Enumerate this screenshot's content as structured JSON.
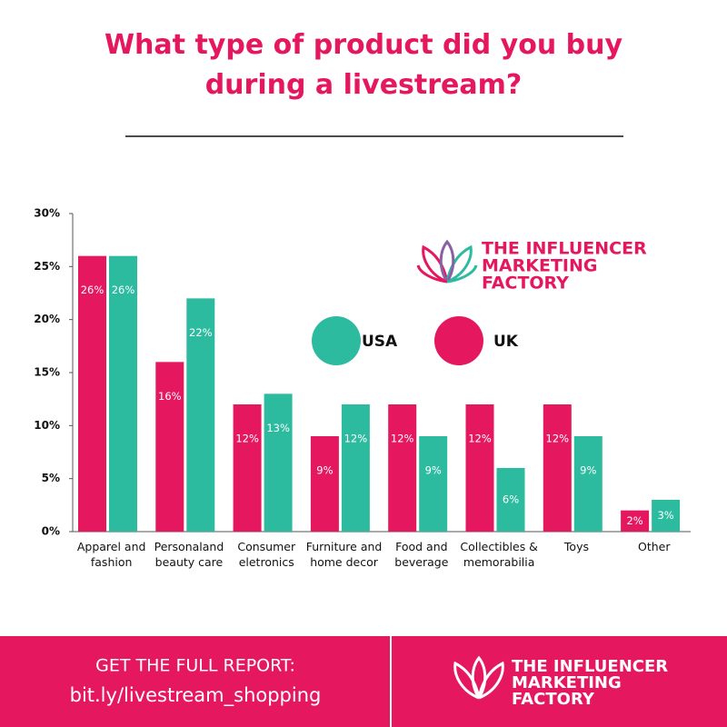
{
  "chart_data": {
    "type": "bar",
    "title": "What type of product did you buy during a livestream?",
    "categories": [
      "Apparel and fashion",
      "Personaland beauty care",
      "Consumer eletronics",
      "Furniture and home decor",
      "Food and beverage",
      "Collectibles & memorabilia",
      "Toys",
      "Other"
    ],
    "series": [
      {
        "name": "UK",
        "color": "#e5175f",
        "values": [
          26,
          16,
          12,
          9,
          12,
          12,
          12,
          2
        ],
        "value_labels": [
          "26%",
          "16%",
          "12%",
          "9%",
          "12%",
          "12%",
          "12%",
          "2%"
        ]
      },
      {
        "name": "USA",
        "color": "#2dbba0",
        "values": [
          26,
          22,
          13,
          12,
          9,
          6,
          9,
          3
        ],
        "value_labels": [
          "26%",
          "22%",
          "13%",
          "12%",
          "9%",
          "6%",
          "9%",
          "3%"
        ]
      }
    ],
    "ylim": [
      0,
      30
    ],
    "yticks": [
      {
        "value": 0,
        "label": "0%"
      },
      {
        "value": 5,
        "label": "5%"
      },
      {
        "value": 10,
        "label": "10%"
      },
      {
        "value": 15,
        "label": "15%"
      },
      {
        "value": 20,
        "label": "20%"
      },
      {
        "value": 25,
        "label": "25%"
      },
      {
        "value": 30,
        "label": "30%"
      }
    ]
  },
  "logo": [
    "THE INFLUENCER",
    "MARKETING",
    "FACTORY"
  ],
  "footer": {
    "cta": "GET THE FULL REPORT:",
    "link": "bit.ly/livestream_shopping"
  }
}
